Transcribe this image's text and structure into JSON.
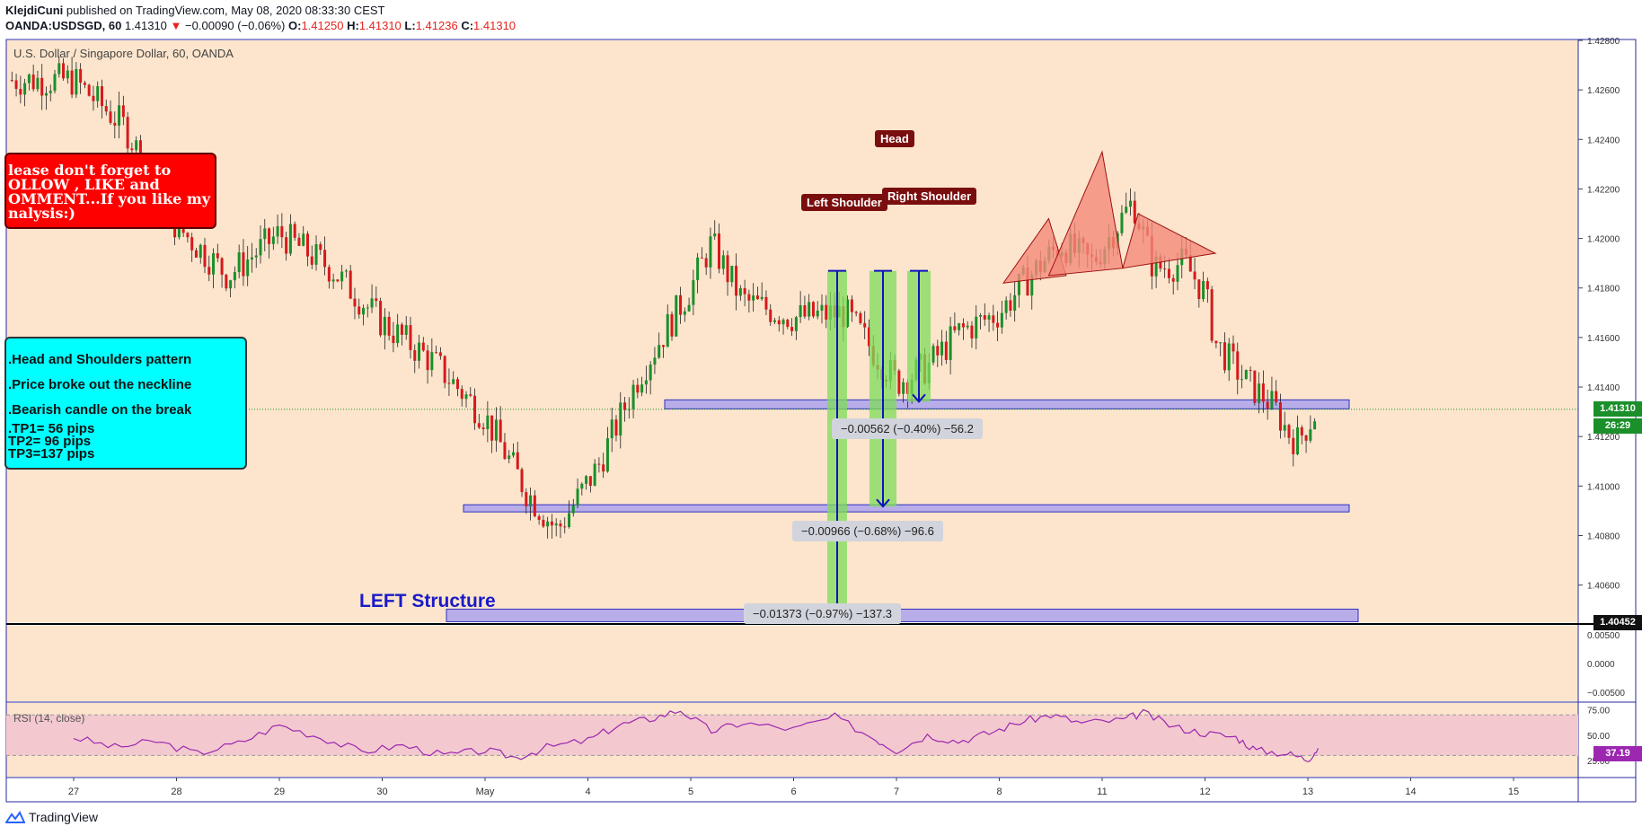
{
  "header": {
    "author": "KlejdiCuni",
    "published_text": "published on TradingView.com, May 08, 2020 08:33:30 CEST",
    "symbol": "OANDA:USDSGD, 60",
    "last": "1.41310",
    "change": "−0.00090 (−0.06%)",
    "o_label": "O:",
    "o_value": "1.41250",
    "h_label": "H:",
    "h_value": "1.41310",
    "l_label": "L:",
    "l_value": "1.41236",
    "c_label": "C:",
    "c_value": "1.41310"
  },
  "chart_title": "U.S. Dollar / Singapore Dollar, 60, OANDA",
  "footer_brand": "TradingView",
  "colors": {
    "background": "#fce5cc",
    "bull": "#1a8f2a",
    "bear": "#d7191c",
    "zone": "#8080ff",
    "rsi_line": "#9c27b0",
    "rsi_band": "#f3c9cf",
    "pattern_fill": "#f28a7a"
  },
  "notes": {
    "red_lines": [
      "lease don't forget  to",
      "OLLOW , LIKE and",
      "OMMENT...If you like my",
      "nalysis:)"
    ],
    "cyan_lines": [
      ".Head and Shoulders pattern",
      ".Price broke out the neckline",
      ".Bearish candle on the break",
      ".TP1= 56 pips",
      " TP2= 96 pips",
      " TP3=137 pips"
    ]
  },
  "pattern_labels": {
    "left_shoulder": "Left Shoulder",
    "head": "Head",
    "right_shoulder": "Right Shoulder"
  },
  "measures": {
    "tp1": "−0.00562 (−0.40%) −56.2",
    "tp2": "−0.00966 (−0.68%) −96.6",
    "tp3": "−0.01373 (−0.97%) −137.3"
  },
  "left_structure": "LEFT Structure",
  "price_tags": {
    "current": "1.41310",
    "countdown": "26:29",
    "bottom": "1.40452",
    "rsi": "37.19"
  },
  "chart_data": {
    "type": "candlestick",
    "title": "U.S. Dollar / Singapore Dollar, 60, OANDA",
    "timeframe": "60",
    "x_ticks": [
      "27",
      "28",
      "29",
      "30",
      "May",
      "4",
      "5",
      "6",
      "7",
      "8",
      "11",
      "12",
      "13",
      "14",
      "15"
    ],
    "y_ticks": [
      "1.42800",
      "1.42600",
      "1.42400",
      "1.42200",
      "1.42000",
      "1.41800",
      "1.41600",
      "1.41400",
      "1.41200",
      "1.41000",
      "1.40800",
      "1.40600"
    ],
    "ylim": [
      1.4045,
      1.428
    ],
    "close_path": [
      [
        0,
        1.4264
      ],
      [
        0.5,
        1.4245
      ],
      [
        1,
        1.4205
      ],
      [
        1.5,
        1.4185
      ],
      [
        2,
        1.4202
      ],
      [
        2.5,
        1.4188
      ],
      [
        3,
        1.4166
      ],
      [
        3.5,
        1.415
      ],
      [
        4,
        1.4128
      ],
      [
        4.4,
        1.4098
      ],
      [
        4.7,
        1.4082
      ],
      [
        5.1,
        1.4108
      ],
      [
        5.5,
        1.4145
      ],
      [
        6,
        1.418
      ],
      [
        6.2,
        1.4198
      ],
      [
        6.5,
        1.4175
      ],
      [
        7,
        1.4168
      ],
      [
        7.5,
        1.417
      ],
      [
        8,
        1.4142
      ],
      [
        8.3,
        1.4148
      ],
      [
        8.6,
        1.4162
      ],
      [
        9,
        1.417
      ],
      [
        9.3,
        1.4185
      ],
      [
        9.6,
        1.4198
      ],
      [
        9.9,
        1.419
      ],
      [
        10.3,
        1.4215
      ],
      [
        10.5,
        1.4188
      ],
      [
        10.8,
        1.419
      ],
      [
        11.0,
        1.4178
      ],
      [
        11.1,
        1.4158
      ],
      [
        11.4,
        1.4142
      ],
      [
        11.6,
        1.4135
      ],
      [
        11.7,
        1.413
      ],
      [
        11.8,
        1.4122
      ],
      [
        11.9,
        1.4118
      ],
      [
        12.0,
        1.4125
      ],
      [
        12.1,
        1.4131
      ]
    ],
    "patterns": {
      "left_shoulder_peak": 1.4208,
      "head_peak": 1.4235,
      "right_shoulder_peak": 1.421,
      "neckline": 1.4188
    },
    "zones": [
      {
        "name": "TP1",
        "price": 1.4133
      },
      {
        "name": "TP2",
        "price": 1.4091
      },
      {
        "name": "TP3",
        "price": 1.40452
      }
    ],
    "current_price": 1.4131,
    "macd": {
      "y_ticks": [
        "0.00500",
        "0.0000",
        "−0.00500"
      ]
    },
    "rsi": {
      "label": "RSI (14, close)",
      "period": 14,
      "y_ticks": [
        "75.00",
        "50.00",
        "25.00"
      ],
      "upper": 70,
      "lower": 30,
      "last": 37.19,
      "points": [
        [
          0,
          48
        ],
        [
          0.4,
          38
        ],
        [
          0.8,
          44
        ],
        [
          1.2,
          32
        ],
        [
          1.6,
          42
        ],
        [
          2.0,
          60
        ],
        [
          2.4,
          48
        ],
        [
          2.8,
          34
        ],
        [
          3.2,
          40
        ],
        [
          3.6,
          30
        ],
        [
          4.0,
          35
        ],
        [
          4.3,
          28
        ],
        [
          4.6,
          38
        ],
        [
          5.0,
          45
        ],
        [
          5.3,
          60
        ],
        [
          5.6,
          66
        ],
        [
          5.9,
          75
        ],
        [
          6.2,
          54
        ],
        [
          6.5,
          62
        ],
        [
          7.0,
          56
        ],
        [
          7.4,
          68
        ],
        [
          7.8,
          46
        ],
        [
          8.0,
          35
        ],
        [
          8.3,
          50
        ],
        [
          8.6,
          44
        ],
        [
          8.9,
          52
        ],
        [
          9.2,
          63
        ],
        [
          9.5,
          70
        ],
        [
          9.8,
          62
        ],
        [
          10.2,
          65
        ],
        [
          10.4,
          72
        ],
        [
          10.7,
          58
        ],
        [
          11.0,
          52
        ],
        [
          11.3,
          48
        ],
        [
          11.5,
          35
        ],
        [
          11.8,
          32
        ],
        [
          12.0,
          26
        ],
        [
          12.1,
          37.19
        ]
      ]
    }
  }
}
